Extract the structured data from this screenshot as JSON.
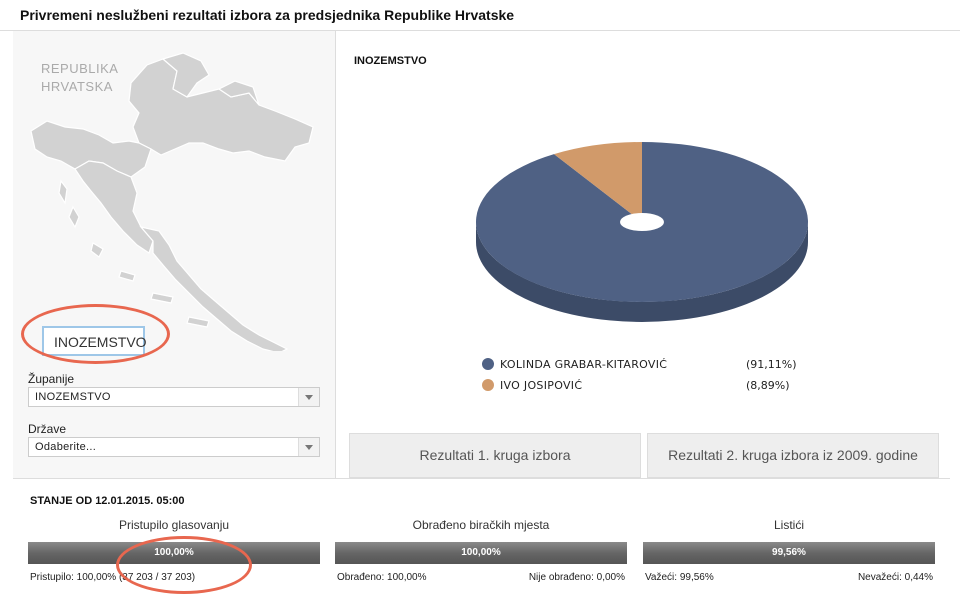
{
  "title": "Privremeni neslužbeni rezultati izbora za predsjednika Republike Hrvatske",
  "map": {
    "label_line1": "REPUBLIKA",
    "label_line2": "HRVATSKA",
    "selected": "INOZEMSTVO"
  },
  "filters": {
    "zupanije_label": "Županije",
    "zupanije_value": "INOZEMSTVO",
    "drzave_label": "Države",
    "drzave_value": "Odaberite..."
  },
  "chart_title": "INOZEMSTVO",
  "chart_data": {
    "type": "pie",
    "title": "INOZEMSTVO",
    "slices": [
      {
        "name": "KOLINDA GRABAR-KITAROVIĆ",
        "value": 91.11,
        "label": "(91,11%)",
        "color": "#4f6184"
      },
      {
        "name": "IVO JOSIPOVIĆ",
        "value": 8.89,
        "label": "(8,89%)",
        "color": "#d19a6a"
      }
    ]
  },
  "tabs": [
    {
      "label": "Rezultati 1. kruga izbora"
    },
    {
      "label": "Rezultati 2. kruga izbora iz 2009. godine"
    }
  ],
  "stats": {
    "stanje": "STANJE OD 12.01.2015. 05:00",
    "columns": [
      {
        "title": "Pristupilo glasovanju",
        "bar_label": "100,00%",
        "fill_percent": 100,
        "left_note": "Pristupilo: 100,00% (37 203 / 37 203)",
        "right_note": ""
      },
      {
        "title": "Obrađeno biračkih mjesta",
        "bar_label": "100,00%",
        "fill_percent": 100,
        "left_note": "Obrađeno: 100,00%",
        "right_note": "Nije obrađeno: 0,00%"
      },
      {
        "title": "Listići",
        "bar_label": "99,56%",
        "fill_percent": 99.56,
        "left_note": "Važeći: 99,56%",
        "right_note": "Nevažeći: 0,44%"
      }
    ]
  },
  "colors": {
    "accent_ring": "#e8674f",
    "bar": "#666666"
  }
}
